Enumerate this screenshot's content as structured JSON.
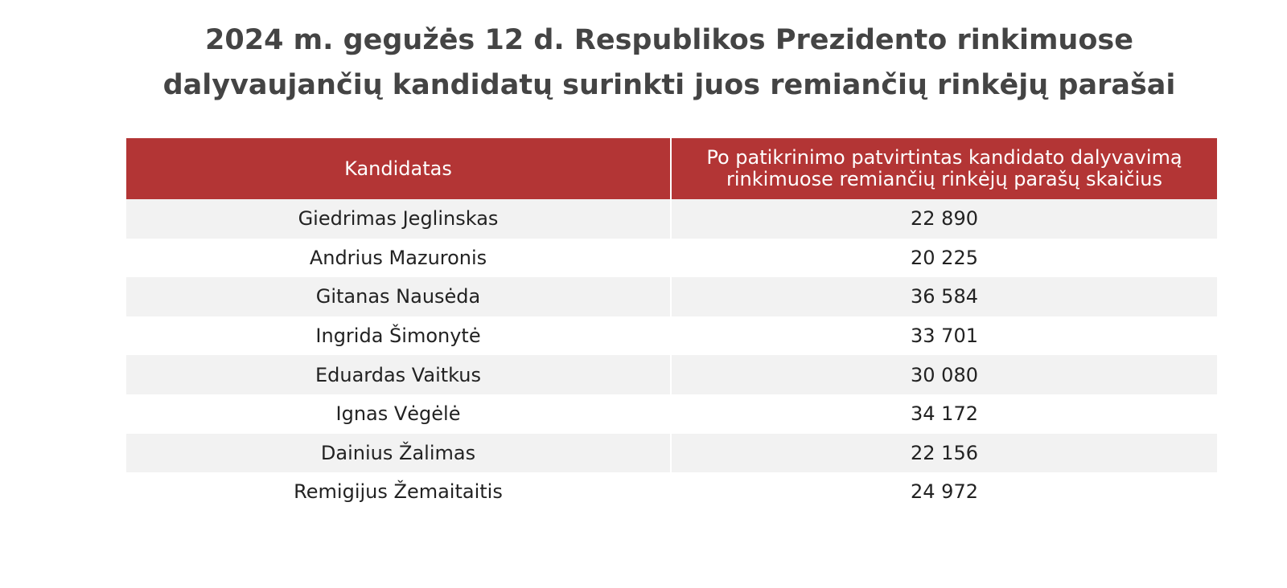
{
  "title": [
    "2024 m. gegužės 12 d. Respublikos Prezidento rinkimuose",
    "dalyvaujančių kandidatų surinkti juos remiančių rinkėjų parašai"
  ],
  "table": {
    "header": [
      "Kandidatas",
      [
        "Po patikrinimo patvirtintas kandidato dalyvavimą",
        "rinkimuose remiančių rinkėjų parašų skaičius"
      ]
    ],
    "rows": [
      [
        "Giedrimas Jeglinskas",
        "22 890"
      ],
      [
        "Andrius Mazuronis",
        "20 225"
      ],
      [
        "Gitanas Nausėda",
        "36 584"
      ],
      [
        "Ingrida Šimonytė",
        "33 701"
      ],
      [
        "Eduardas Vaitkus",
        "30 080"
      ],
      [
        "Ignas Vėgėlė",
        "34 172"
      ],
      [
        "Dainius Žalimas",
        "22 156"
      ],
      [
        "Remigijus Žemaitaitis",
        "24 972"
      ]
    ]
  }
}
